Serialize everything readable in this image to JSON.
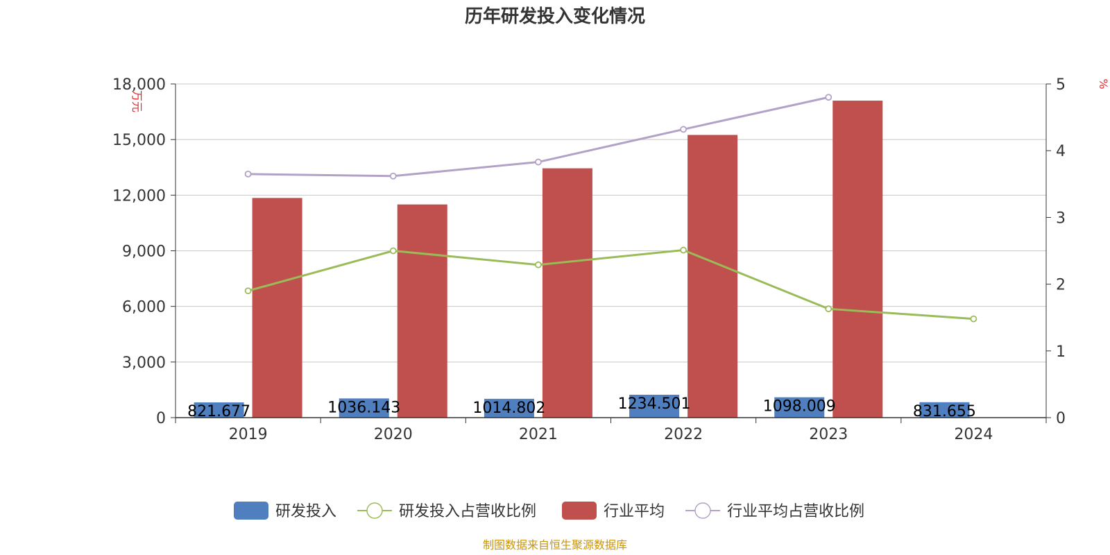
{
  "chart_data": {
    "type": "bar",
    "title": "历年研发投入变化情况",
    "categories": [
      "2019",
      "2020",
      "2021",
      "2022",
      "2023",
      "2024"
    ],
    "y_left": {
      "label": "万元",
      "ylim": [
        0,
        18000
      ],
      "ticks": [
        0,
        3000,
        6000,
        9000,
        12000,
        15000,
        18000
      ],
      "tick_labels": [
        "0",
        "3,000",
        "6,000",
        "9,000",
        "12,000",
        "15,000",
        "18,000"
      ]
    },
    "y_right": {
      "label": "%",
      "ylim": [
        0,
        5
      ],
      "ticks": [
        0,
        1,
        2,
        3,
        4,
        5
      ],
      "tick_labels": [
        "0",
        "1",
        "2",
        "3",
        "4",
        "5"
      ]
    },
    "series": [
      {
        "name": "研发投入",
        "type": "bar",
        "axis": "left",
        "color": "#4f7fbf",
        "values": [
          821.677,
          1036.143,
          1014.802,
          1234.501,
          1098.009,
          831.655
        ],
        "labels": [
          "821.677",
          "1036.143",
          "1014.802",
          "1234.501",
          "1098.009",
          "831.655"
        ]
      },
      {
        "name": "研发投入占营收比例",
        "type": "line",
        "axis": "right",
        "color": "#9bbb59",
        "values": [
          1.9,
          2.5,
          2.29,
          2.51,
          1.63,
          1.48
        ]
      },
      {
        "name": "行业平均",
        "type": "bar",
        "axis": "left",
        "color": "#c0504d",
        "values": [
          11850,
          11500,
          13450,
          15250,
          17100,
          null
        ]
      },
      {
        "name": "行业平均占营收比例",
        "type": "line",
        "axis": "right",
        "color": "#b3a2c7",
        "values": [
          3.65,
          3.62,
          3.83,
          4.32,
          4.8,
          null
        ]
      }
    ],
    "grid": true,
    "legend_position": "bottom"
  },
  "source_text": "制图数据来自恒生聚源数据库"
}
